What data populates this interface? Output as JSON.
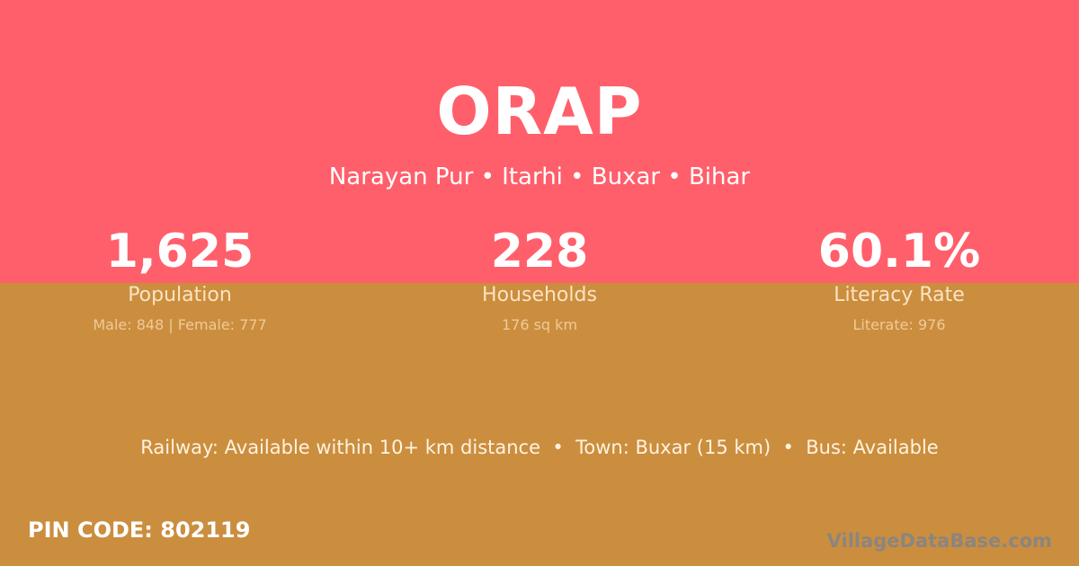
{
  "village": "ORAP",
  "location": "Narayan Pur • Itarhi • Buxar • Bihar",
  "stats": [
    {
      "value": "1,625",
      "label": "Population",
      "detail": "Male: 848 | Female: 777"
    },
    {
      "value": "228",
      "label": "Households",
      "detail": "176 sq km"
    },
    {
      "value": "60.1%",
      "label": "Literacy Rate",
      "detail": "Literate: 976"
    }
  ],
  "transport": "Railway: Available within 10+ km distance  •  Town: Buxar (15 km)  •  Bus: Available",
  "pin": "PIN CODE: 802119",
  "watermark": "VillageDataBase.com",
  "colors": {
    "top": "#ff5f6b",
    "bottom": "#cb8e3e"
  }
}
